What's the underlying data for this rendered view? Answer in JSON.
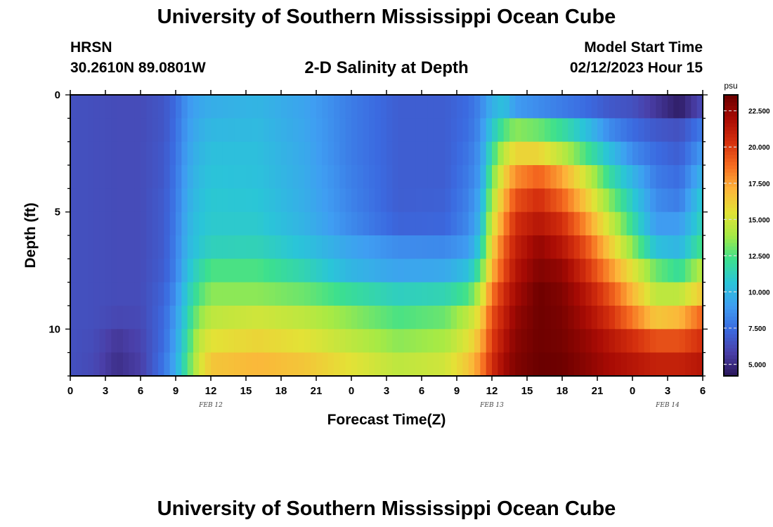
{
  "header": {
    "title": "University of Southern Mississippi Ocean Cube",
    "station": "HRSN",
    "coordinates": "30.2610N  89.0801W",
    "subtitle": "2-D Salinity at Depth",
    "model_label": "Model Start Time",
    "model_time": "02/12/2023 Hour 15"
  },
  "footer": {
    "title": "University of Southern Mississippi Ocean Cube"
  },
  "chart_data": {
    "type": "heatmap",
    "xlabel": "Forecast Time(Z)",
    "ylabel": "Depth (ft)",
    "x_tick_labels": [
      "0",
      "3",
      "6",
      "9",
      "12",
      "15",
      "18",
      "21",
      "0",
      "3",
      "6",
      "9",
      "12",
      "15",
      "18",
      "21",
      "0",
      "3",
      "6"
    ],
    "x_hours": [
      0,
      3,
      6,
      9,
      12,
      15,
      18,
      21,
      24,
      27,
      30,
      33,
      36,
      39,
      42,
      45,
      48,
      51,
      54
    ],
    "date_labels": [
      {
        "label": "FEB 12",
        "hour": 12
      },
      {
        "label": "FEB 13",
        "hour": 36
      },
      {
        "label": "FEB 14",
        "hour": 51
      }
    ],
    "y_tick_labels": [
      "0",
      "5",
      "10"
    ],
    "y_ticks": [
      0,
      5,
      10
    ],
    "ylim": [
      12,
      0
    ],
    "xlim": [
      0,
      54
    ],
    "colorbar": {
      "unit": "psu",
      "range": [
        4.2,
        23.6
      ],
      "tick_values": [
        5.0,
        7.5,
        10.0,
        12.5,
        15.0,
        17.5,
        20.0,
        22.5
      ],
      "tick_labels": [
        "5.000",
        "7.500",
        "10.000",
        "12.500",
        "15.000",
        "17.500",
        "20.000",
        "22.500"
      ],
      "colors": [
        "#2a1658",
        "#4a3fa8",
        "#3b6ae0",
        "#3f9ef2",
        "#2ac5d8",
        "#3ce08e",
        "#a6ea45",
        "#e3e236",
        "#fdb43a",
        "#f56b20",
        "#d5300e",
        "#a80b04",
        "#6b0000"
      ]
    },
    "depths": [
      0.5,
      1.5,
      2.5,
      3.5,
      4.5,
      5.5,
      6.5,
      7.5,
      8.5,
      9.5,
      10.5,
      11.5
    ],
    "time_knots": [
      0,
      2,
      4,
      6,
      8,
      9,
      10,
      11,
      12,
      16,
      20,
      24,
      28,
      32,
      34,
      35,
      36,
      37,
      38,
      40,
      42,
      44,
      46,
      48,
      50,
      52,
      54
    ],
    "salinity": [
      [
        6.5,
        6.4,
        6.3,
        6.3,
        6.7,
        7.5,
        8.8,
        9.4,
        9.7,
        10.0,
        9.3,
        8.0,
        7.0,
        7.0,
        7.5,
        8.3,
        9.8,
        10.5,
        9.0,
        8.5,
        8.0,
        7.5,
        6.8,
        6.5,
        5.5,
        4.5,
        6.3
      ],
      [
        6.5,
        6.4,
        6.3,
        6.3,
        6.7,
        7.6,
        9.0,
        9.7,
        10.1,
        10.2,
        9.4,
        8.0,
        7.0,
        7.0,
        7.6,
        8.5,
        10.8,
        12.5,
        13.5,
        13.0,
        12.0,
        10.5,
        8.5,
        7.5,
        6.8,
        6.5,
        8.0
      ],
      [
        6.5,
        6.4,
        6.3,
        6.3,
        6.8,
        7.7,
        9.2,
        10.0,
        10.4,
        10.4,
        9.5,
        8.0,
        7.0,
        7.0,
        7.8,
        8.8,
        12.0,
        14.5,
        16.0,
        16.0,
        14.5,
        12.5,
        10.5,
        8.5,
        7.5,
        7.0,
        9.0
      ],
      [
        6.5,
        6.4,
        6.3,
        6.3,
        6.8,
        7.8,
        9.4,
        10.2,
        10.6,
        10.5,
        9.6,
        8.1,
        7.0,
        7.0,
        8.0,
        9.0,
        13.0,
        16.0,
        18.0,
        19.0,
        17.5,
        15.0,
        12.0,
        10.0,
        8.0,
        7.5,
        10.0
      ],
      [
        6.5,
        6.4,
        6.3,
        6.3,
        6.9,
        7.9,
        9.6,
        10.4,
        10.8,
        10.7,
        9.7,
        8.2,
        7.0,
        7.1,
        8.2,
        9.5,
        14.0,
        17.0,
        19.5,
        20.5,
        19.0,
        16.5,
        13.5,
        11.0,
        8.5,
        8.0,
        11.0
      ],
      [
        6.5,
        6.4,
        6.3,
        6.3,
        6.9,
        8.0,
        9.8,
        10.6,
        10.9,
        10.9,
        9.9,
        8.4,
        7.2,
        7.3,
        8.4,
        10.0,
        15.0,
        18.0,
        20.5,
        21.5,
        20.5,
        18.0,
        15.0,
        12.0,
        9.0,
        9.0,
        11.5
      ],
      [
        6.5,
        6.4,
        6.3,
        6.3,
        6.9,
        8.1,
        10.0,
        10.8,
        11.3,
        11.4,
        10.5,
        9.3,
        8.5,
        8.4,
        9.0,
        11.0,
        16.0,
        19.0,
        21.0,
        22.5,
        21.5,
        19.5,
        16.5,
        13.5,
        10.5,
        10.0,
        12.5
      ],
      [
        6.5,
        6.4,
        6.3,
        6.3,
        7.0,
        8.2,
        10.4,
        11.6,
        12.5,
        12.5,
        11.5,
        10.0,
        9.3,
        9.5,
        10.5,
        12.5,
        17.0,
        19.5,
        21.5,
        23.0,
        22.5,
        20.5,
        18.0,
        15.5,
        13.0,
        12.0,
        14.5
      ],
      [
        6.5,
        6.4,
        6.3,
        6.3,
        7.2,
        8.6,
        11.0,
        12.5,
        13.5,
        13.5,
        13.0,
        12.0,
        11.2,
        11.5,
        12.5,
        14.5,
        18.5,
        20.5,
        22.0,
        23.5,
        23.0,
        21.5,
        19.5,
        17.0,
        14.5,
        14.5,
        16.5
      ],
      [
        6.5,
        6.4,
        6.1,
        6.2,
        7.4,
        9.0,
        11.5,
        13.5,
        14.5,
        15.0,
        14.5,
        13.5,
        12.5,
        13.0,
        14.5,
        16.0,
        19.5,
        21.0,
        22.5,
        23.5,
        23.2,
        22.0,
        20.5,
        18.5,
        16.5,
        17.0,
        19.0
      ],
      [
        6.5,
        6.3,
        5.5,
        6.0,
        7.5,
        9.3,
        12.0,
        14.5,
        15.5,
        16.0,
        15.5,
        14.5,
        13.5,
        14.0,
        15.5,
        17.0,
        20.0,
        21.5,
        22.8,
        23.5,
        23.3,
        22.5,
        21.5,
        20.5,
        19.5,
        19.5,
        20.5
      ],
      [
        6.5,
        6.2,
        5.2,
        5.8,
        7.8,
        9.6,
        12.5,
        15.0,
        16.5,
        17.0,
        16.5,
        15.5,
        14.5,
        15.0,
        16.5,
        18.0,
        20.5,
        22.0,
        23.0,
        23.6,
        23.5,
        22.8,
        22.0,
        21.5,
        21.0,
        21.0,
        21.5
      ]
    ]
  }
}
